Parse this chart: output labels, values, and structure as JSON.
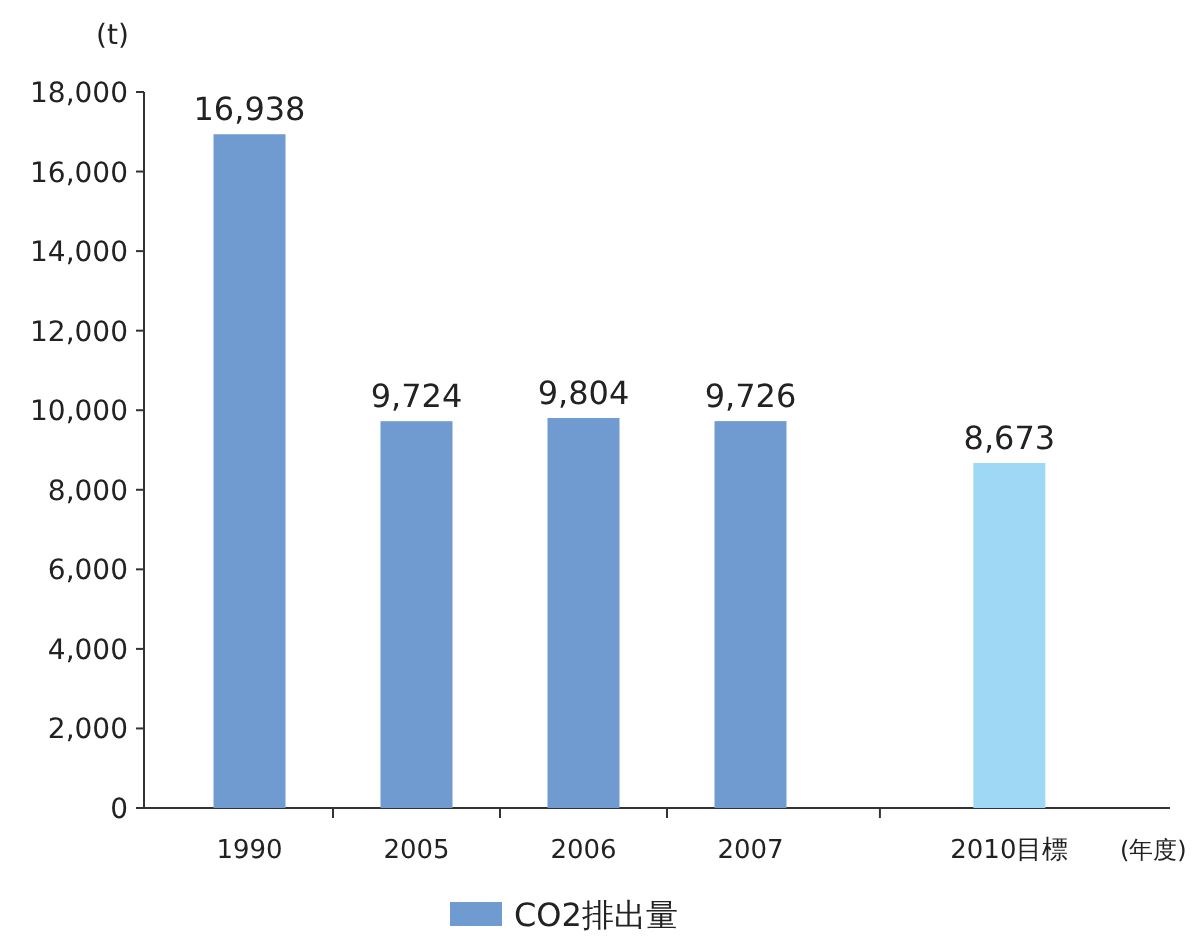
{
  "chart_data": {
    "type": "bar",
    "categories": [
      "1990",
      "2005",
      "2006",
      "2007",
      "2010目標"
    ],
    "series": [
      {
        "name": "CO2排出量",
        "color": "#6f9bd1",
        "colors": [
          "#6f9bd1",
          "#6f9bd1",
          "#6f9bd1",
          "#6f9bd1",
          "#9ed8f5"
        ],
        "values": [
          16938,
          9724,
          9804,
          9726,
          8673
        ],
        "value_labels": [
          "16,938",
          "9,724",
          "9,804",
          "9,726",
          "8,673"
        ]
      }
    ],
    "ylabel": "(t)",
    "xlabel": "(年度)",
    "ylim": [
      0,
      18000
    ],
    "yticks": [
      0,
      {
        "value": 2000,
        "label": "2,000"
      },
      {
        "value": 4000,
        "label": "4,000"
      },
      {
        "value": 6000,
        "label": "6,000"
      },
      {
        "value": 8000,
        "label": "8,000"
      },
      {
        "value": 10000,
        "label": "10,000"
      },
      {
        "value": 12000,
        "label": "12,000"
      },
      {
        "value": 14000,
        "label": "14,000"
      },
      {
        "value": 16000,
        "label": "16,000"
      },
      {
        "value": 18000,
        "label": "18,000"
      }
    ],
    "legend": "bottom"
  }
}
